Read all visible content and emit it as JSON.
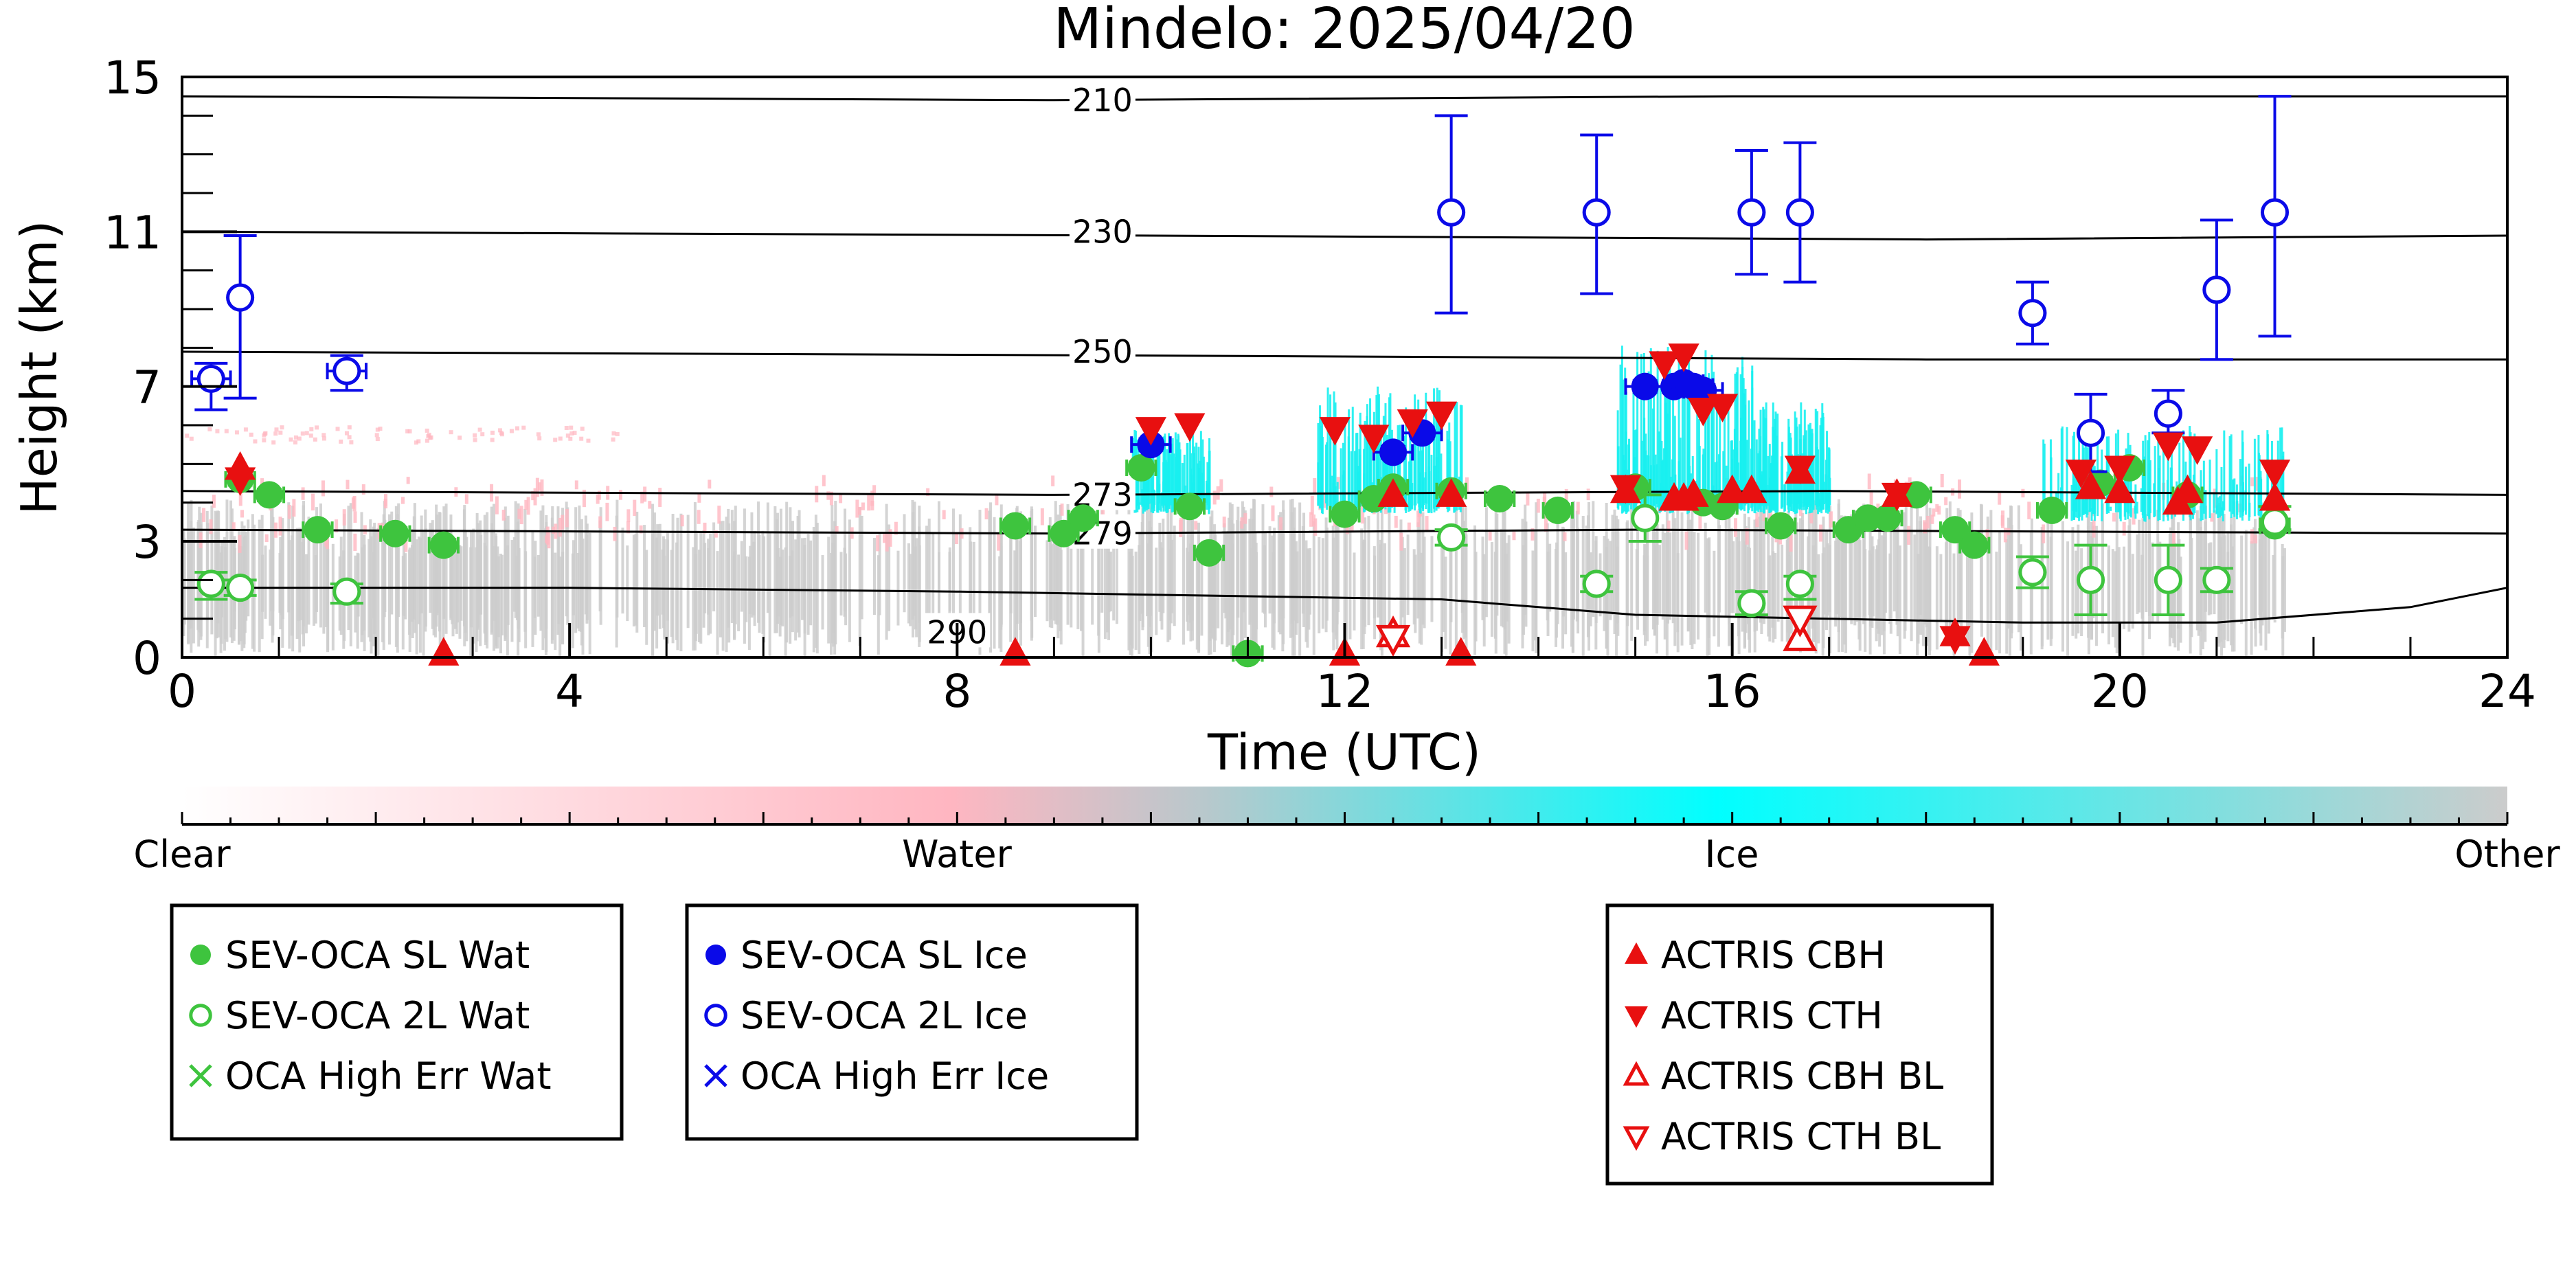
{
  "title": "Mindelo: 2025/04/20",
  "colors": {
    "sl_wat": "#3ec43e",
    "l2_wat": "#3ec43e",
    "sl_ice": "#0a0ae8",
    "l2_ice": "#0a0ae8",
    "actris": "#e81010",
    "cyan": "#18f0f0",
    "pink": "#ffb6c1",
    "grey": "#cccccc"
  },
  "colorbar": {
    "labels": [
      "Clear",
      "Water",
      "Ice",
      "Other"
    ]
  },
  "legend_groups": [
    [
      {
        "label": "SEV-OCA SL Wat",
        "marker": "filled-circle",
        "color": "#3ec43e"
      },
      {
        "label": "SEV-OCA 2L Wat",
        "marker": "open-circle",
        "color": "#3ec43e"
      },
      {
        "label": "OCA High Err Wat",
        "marker": "x",
        "color": "#3ec43e"
      }
    ],
    [
      {
        "label": "SEV-OCA SL Ice",
        "marker": "filled-circle",
        "color": "#0a0ae8"
      },
      {
        "label": "SEV-OCA 2L Ice",
        "marker": "open-circle",
        "color": "#0a0ae8"
      },
      {
        "label": "OCA High Err Ice",
        "marker": "x",
        "color": "#0a0ae8"
      }
    ],
    [
      {
        "label": "ACTRIS CBH",
        "marker": "tri-up",
        "color": "#e81010"
      },
      {
        "label": "ACTRIS CTH",
        "marker": "tri-down",
        "color": "#e81010"
      },
      {
        "label": "ACTRIS CBH BL",
        "marker": "tri-up-open",
        "color": "#e81010"
      },
      {
        "label": "ACTRIS CTH BL",
        "marker": "tri-down-open",
        "color": "#e81010"
      }
    ]
  ],
  "chart_data": {
    "type": "scatter",
    "title": "Mindelo: 2025/04/20",
    "xlabel": "Time (UTC)",
    "ylabel": "Height (km)",
    "xlim": [
      0,
      24
    ],
    "ylim": [
      0,
      15
    ],
    "xticks": [
      0,
      4,
      8,
      12,
      16,
      20,
      24
    ],
    "yticks": [
      0,
      3,
      7,
      11,
      15
    ],
    "contours": [
      {
        "label": "210",
        "label_x": 9.5,
        "label_y": 14.4,
        "points": [
          [
            0,
            14.5
          ],
          [
            9,
            14.4
          ],
          [
            16,
            14.5
          ],
          [
            24,
            14.5
          ]
        ]
      },
      {
        "label": "230",
        "label_x": 9.5,
        "label_y": 11.0,
        "points": [
          [
            0,
            11.0
          ],
          [
            10,
            10.9
          ],
          [
            18,
            10.8
          ],
          [
            24,
            10.9
          ]
        ]
      },
      {
        "label": "250",
        "label_x": 9.5,
        "label_y": 7.9,
        "points": [
          [
            0,
            7.9
          ],
          [
            10,
            7.8
          ],
          [
            18,
            7.7
          ],
          [
            24,
            7.7
          ]
        ]
      },
      {
        "label": "273",
        "label_x": 9.5,
        "label_y": 4.2,
        "points": [
          [
            0,
            4.3
          ],
          [
            9,
            4.2
          ],
          [
            17,
            4.3
          ],
          [
            24,
            4.2
          ]
        ]
      },
      {
        "label": "279",
        "label_x": 9.5,
        "label_y": 3.2,
        "points": [
          [
            0,
            3.3
          ],
          [
            9,
            3.2
          ],
          [
            15,
            3.3
          ],
          [
            24,
            3.2
          ]
        ]
      },
      {
        "label": "290",
        "label_x": 8.0,
        "label_y": 0.65,
        "points": [
          [
            0,
            1.8
          ],
          [
            4,
            1.8
          ],
          [
            8,
            1.7
          ],
          [
            13,
            1.5
          ],
          [
            15,
            1.1
          ],
          [
            17,
            1.0
          ],
          [
            19,
            0.9
          ],
          [
            21,
            0.9
          ],
          [
            23,
            1.3
          ],
          [
            24,
            1.8
          ]
        ]
      }
    ],
    "series": [
      {
        "name": "SEV-OCA SL Wat",
        "points": [
          [
            0.6,
            4.6
          ],
          [
            0.9,
            4.2
          ],
          [
            1.4,
            3.3
          ],
          [
            2.2,
            3.2
          ],
          [
            2.7,
            2.9
          ],
          [
            8.6,
            3.4
          ],
          [
            9.1,
            3.2
          ],
          [
            9.3,
            3.6
          ],
          [
            9.9,
            4.9
          ],
          [
            10.4,
            3.9
          ],
          [
            10.6,
            2.7
          ],
          [
            11.0,
            0.1
          ],
          [
            12.0,
            3.7
          ],
          [
            12.3,
            4.1
          ],
          [
            12.5,
            4.4
          ],
          [
            13.1,
            4.3
          ],
          [
            13.6,
            4.1
          ],
          [
            14.2,
            3.8
          ],
          [
            15.0,
            4.4
          ],
          [
            15.7,
            4.0
          ],
          [
            15.9,
            3.9
          ],
          [
            16.5,
            3.4
          ],
          [
            17.2,
            3.3
          ],
          [
            17.4,
            3.6
          ],
          [
            17.6,
            3.6
          ],
          [
            17.9,
            4.2
          ],
          [
            18.3,
            3.3
          ],
          [
            18.5,
            2.9
          ],
          [
            19.3,
            3.8
          ],
          [
            19.8,
            4.5
          ],
          [
            20.1,
            4.9
          ],
          [
            20.7,
            4.2
          ],
          [
            21.6,
            3.4
          ]
        ],
        "xerr": 0.15,
        "yerr": 0.15
      },
      {
        "name": "SEV-OCA 2L Wat",
        "points": [
          [
            0.3,
            1.9
          ],
          [
            0.6,
            1.8
          ],
          [
            1.7,
            1.7
          ],
          [
            13.1,
            3.1
          ],
          [
            14.6,
            1.9
          ],
          [
            15.1,
            3.6
          ],
          [
            16.2,
            1.4
          ],
          [
            16.7,
            1.9
          ],
          [
            19.1,
            2.2
          ],
          [
            19.7,
            2.0
          ],
          [
            20.5,
            2.0
          ],
          [
            21.0,
            2.0
          ],
          [
            21.6,
            3.5
          ]
        ],
        "yerr_up": [
          0.3,
          0.2,
          0.2,
          0.2,
          0.2,
          0.6,
          0.3,
          0.2,
          0.4,
          0.9,
          0.9,
          0.3,
          0.4
        ],
        "yerr_down": [
          0.4,
          0.2,
          0.3,
          0.2,
          0.2,
          0.6,
          0.3,
          0.4,
          0.4,
          0.9,
          0.9,
          0.3,
          0.2
        ]
      },
      {
        "name": "SEV-OCA SL Ice",
        "points": [
          [
            10.0,
            5.5
          ],
          [
            12.5,
            5.3
          ],
          [
            12.8,
            5.8
          ],
          [
            15.1,
            7.0
          ],
          [
            15.4,
            7.0
          ],
          [
            15.5,
            7.1
          ],
          [
            15.6,
            7.0
          ],
          [
            15.7,
            6.9
          ]
        ],
        "xerr": 0.2,
        "yerr": 0.15
      },
      {
        "name": "SEV-OCA 2L Ice",
        "points": [
          [
            0.3,
            7.2
          ],
          [
            0.6,
            9.3
          ],
          [
            1.7,
            7.4
          ],
          [
            13.1,
            11.5
          ],
          [
            14.6,
            11.5
          ],
          [
            16.2,
            11.5
          ],
          [
            16.7,
            11.5
          ],
          [
            19.1,
            8.9
          ],
          [
            19.7,
            5.8
          ],
          [
            20.5,
            6.3
          ],
          [
            21.0,
            9.5
          ],
          [
            21.6,
            11.5
          ]
        ],
        "yerr_up": [
          0.4,
          1.6,
          0.4,
          2.5,
          2.0,
          1.6,
          1.8,
          0.8,
          1.0,
          0.6,
          1.8,
          3.0
        ],
        "yerr_down": [
          0.8,
          2.6,
          0.5,
          2.6,
          2.1,
          1.6,
          1.8,
          0.8,
          1.0,
          0.5,
          1.8,
          3.2
        ],
        "xerr": [
          0.2,
          0,
          0.2,
          0,
          0,
          0,
          0,
          0,
          0,
          0,
          0,
          0
        ]
      },
      {
        "name": "ACTRIS CBH",
        "points": [
          [
            0.6,
            4.9
          ],
          [
            2.7,
            0.1
          ],
          [
            8.6,
            0.1
          ],
          [
            12.0,
            0.1
          ],
          [
            13.2,
            0.1
          ],
          [
            13.1,
            4.2
          ],
          [
            14.9,
            4.3
          ],
          [
            15.4,
            4.1
          ],
          [
            15.5,
            4.1
          ],
          [
            15.6,
            4.2
          ],
          [
            16.0,
            4.3
          ],
          [
            16.2,
            4.3
          ],
          [
            16.7,
            4.8
          ],
          [
            17.7,
            4.2
          ],
          [
            18.3,
            0.6
          ],
          [
            18.6,
            0.1
          ],
          [
            19.7,
            4.4
          ],
          [
            20.0,
            4.3
          ],
          [
            20.6,
            4.0
          ],
          [
            20.7,
            4.3
          ],
          [
            21.6,
            4.1
          ],
          [
            12.5,
            4.2
          ]
        ]
      },
      {
        "name": "ACTRIS CTH",
        "points": [
          [
            0.6,
            4.6
          ],
          [
            10.0,
            5.9
          ],
          [
            10.4,
            6.0
          ],
          [
            11.9,
            5.9
          ],
          [
            12.3,
            5.7
          ],
          [
            12.7,
            6.1
          ],
          [
            13.0,
            6.3
          ],
          [
            14.9,
            4.4
          ],
          [
            15.3,
            7.6
          ],
          [
            15.5,
            7.8
          ],
          [
            15.7,
            6.4
          ],
          [
            15.9,
            6.5
          ],
          [
            16.7,
            4.9
          ],
          [
            17.7,
            4.2
          ],
          [
            19.6,
            4.8
          ],
          [
            20.0,
            4.9
          ],
          [
            20.5,
            5.5
          ],
          [
            20.8,
            5.4
          ],
          [
            21.6,
            4.8
          ],
          [
            18.3,
            0.5
          ]
        ]
      },
      {
        "name": "ACTRIS CBH BL",
        "points": [
          [
            12.5,
            0.6
          ],
          [
            16.7,
            0.5
          ]
        ]
      },
      {
        "name": "ACTRIS CTH BL",
        "points": [
          [
            12.5,
            0.5
          ],
          [
            16.7,
            1.0
          ]
        ]
      }
    ]
  }
}
